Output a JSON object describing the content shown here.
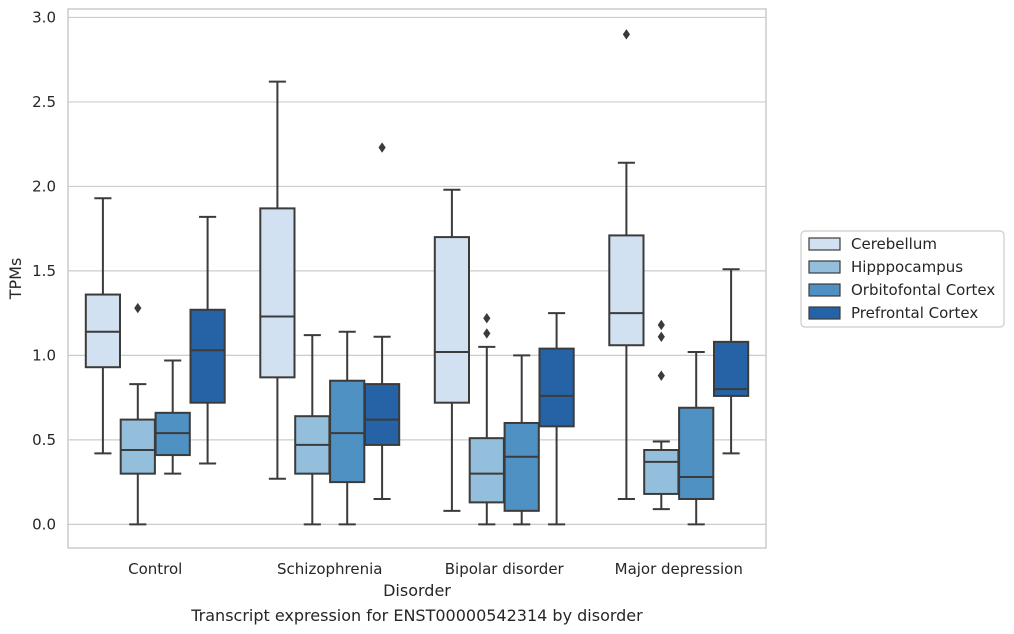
{
  "caption": "Transcript expression for ENST00000542314 by disorder",
  "colors": {
    "Cerebellum": "#d2e1f1",
    "Hipppocampus": "#93bfdc",
    "Orbitofontal Cortex": "#4f91c3",
    "Prefrontal Cortex": "#2563a6",
    "box_edge": "#3b3b3b",
    "grid": "#cccccc",
    "frame": "#cccccc"
  },
  "chart_data": {
    "type": "box",
    "title": "",
    "xlabel": "Disorder",
    "ylabel": "TPMs",
    "ylim": [
      -0.14,
      3.05
    ],
    "yticks": [
      "0.0",
      "0.5",
      "1.0",
      "1.5",
      "2.0",
      "2.5",
      "3.0"
    ],
    "grid": "horizontal",
    "legend_position": "right",
    "categories": [
      "Control",
      "Schizophrenia",
      "Bipolar disorder",
      "Major depression"
    ],
    "series": [
      {
        "name": "Cerebellum",
        "boxes": [
          {
            "whisker_low": 0.42,
            "q1": 0.93,
            "median": 1.14,
            "q3": 1.36,
            "whisker_high": 1.93,
            "outliers": []
          },
          {
            "whisker_low": 0.27,
            "q1": 0.87,
            "median": 1.23,
            "q3": 1.87,
            "whisker_high": 2.62,
            "outliers": []
          },
          {
            "whisker_low": 0.08,
            "q1": 0.72,
            "median": 1.02,
            "q3": 1.7,
            "whisker_high": 1.98,
            "outliers": []
          },
          {
            "whisker_low": 0.15,
            "q1": 1.06,
            "median": 1.25,
            "q3": 1.71,
            "whisker_high": 2.14,
            "outliers": [
              2.9
            ]
          }
        ]
      },
      {
        "name": "Hipppocampus",
        "boxes": [
          {
            "whisker_low": 0.0,
            "q1": 0.3,
            "median": 0.44,
            "q3": 0.62,
            "whisker_high": 0.83,
            "outliers": [
              1.28
            ]
          },
          {
            "whisker_low": 0.0,
            "q1": 0.3,
            "median": 0.47,
            "q3": 0.64,
            "whisker_high": 1.12,
            "outliers": []
          },
          {
            "whisker_low": 0.0,
            "q1": 0.13,
            "median": 0.3,
            "q3": 0.51,
            "whisker_high": 1.05,
            "outliers": [
              1.13,
              1.22
            ]
          },
          {
            "whisker_low": 0.09,
            "q1": 0.18,
            "median": 0.37,
            "q3": 0.44,
            "whisker_high": 0.49,
            "outliers": [
              0.88,
              1.11,
              1.18
            ]
          }
        ]
      },
      {
        "name": "Orbitofontal Cortex",
        "boxes": [
          {
            "whisker_low": 0.3,
            "q1": 0.41,
            "median": 0.54,
            "q3": 0.66,
            "whisker_high": 0.97,
            "outliers": []
          },
          {
            "whisker_low": 0.0,
            "q1": 0.25,
            "median": 0.54,
            "q3": 0.85,
            "whisker_high": 1.14,
            "outliers": []
          },
          {
            "whisker_low": 0.0,
            "q1": 0.08,
            "median": 0.4,
            "q3": 0.6,
            "whisker_high": 1.0,
            "outliers": []
          },
          {
            "whisker_low": 0.0,
            "q1": 0.15,
            "median": 0.28,
            "q3": 0.69,
            "whisker_high": 1.02,
            "outliers": []
          }
        ]
      },
      {
        "name": "Prefrontal Cortex",
        "boxes": [
          {
            "whisker_low": 0.36,
            "q1": 0.72,
            "median": 1.03,
            "q3": 1.27,
            "whisker_high": 1.82,
            "outliers": []
          },
          {
            "whisker_low": 0.15,
            "q1": 0.47,
            "median": 0.62,
            "q3": 0.83,
            "whisker_high": 1.11,
            "outliers": [
              2.23
            ]
          },
          {
            "whisker_low": 0.0,
            "q1": 0.58,
            "median": 0.76,
            "q3": 1.04,
            "whisker_high": 1.25,
            "outliers": []
          },
          {
            "whisker_low": 0.42,
            "q1": 0.76,
            "median": 0.8,
            "q3": 1.08,
            "whisker_high": 1.51,
            "outliers": []
          }
        ]
      }
    ]
  }
}
